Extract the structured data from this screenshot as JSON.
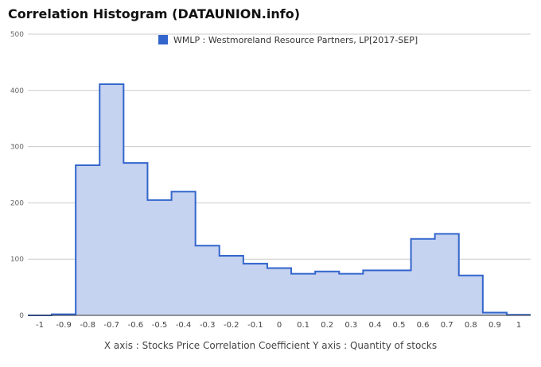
{
  "chart_data": {
    "type": "area",
    "title": "Correlation Histogram (DATAUNION.info)",
    "caption": "X axis : Stocks Price Correlation Coefficient  Y axis : Quantity of stocks",
    "legend": {
      "label": "WMLP : Westmoreland Resource Partners, LP[2017-SEP]",
      "position": "top"
    },
    "series_color": "#3366cc",
    "fill_color": "#c5d2f0",
    "grid": true,
    "ylim": [
      0,
      500
    ],
    "yticks": [
      0,
      100,
      200,
      300,
      400,
      500
    ],
    "xticks": [
      "-1",
      "-0.9",
      "-0.8",
      "-0.7",
      "-0.6",
      "-0.5",
      "-0.4",
      "-0.3",
      "-0.2",
      "-0.1",
      "0",
      "0.1",
      "0.2",
      "0.3",
      "0.4",
      "0.5",
      "0.6",
      "0.7",
      "0.8",
      "0.9",
      "1"
    ],
    "x": [
      -1,
      -0.9,
      -0.8,
      -0.7,
      -0.6,
      -0.5,
      -0.4,
      -0.3,
      -0.2,
      -0.1,
      0,
      0.1,
      0.2,
      0.3,
      0.4,
      0.5,
      0.6,
      0.7,
      0.8,
      0.9,
      1
    ],
    "values": [
      0,
      2,
      267,
      411,
      271,
      205,
      220,
      124,
      106,
      92,
      84,
      74,
      78,
      74,
      80,
      80,
      136,
      145,
      71,
      5,
      1
    ]
  }
}
